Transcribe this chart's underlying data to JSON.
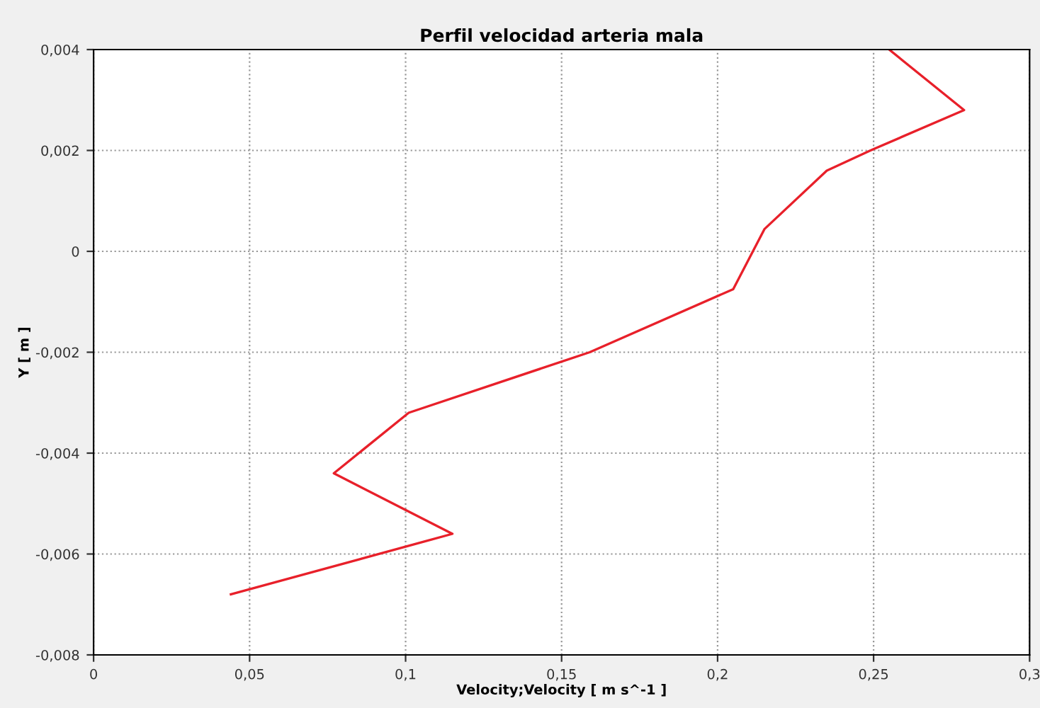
{
  "chart_data": {
    "type": "line",
    "title": "Perfil velocidad arteria mala",
    "xlabel": "Velocity;Velocity [ m s^-1 ]",
    "ylabel": "Y [ m ]",
    "series": [
      {
        "color": "#e8202a",
        "x": [
          0.255,
          0.279,
          0.249,
          0.235,
          0.215,
          0.205,
          0.159,
          0.101,
          0.077,
          0.115,
          0.044
        ],
        "values": [
          0.004,
          0.0028,
          0.002,
          0.0016,
          0.00044,
          -0.00075,
          -0.002,
          -0.0032,
          -0.0044,
          -0.0056,
          -0.0068
        ]
      }
    ],
    "xlim": [
      0,
      0.3
    ],
    "ylim": [
      -0.008,
      0.004
    ],
    "xticks": [
      0,
      {
        "value": 0.05,
        "label": "0,05"
      },
      {
        "value": 0.1,
        "label": "0,1"
      },
      {
        "value": 0.15,
        "label": "0,15"
      },
      {
        "value": 0.2,
        "label": "0,2"
      },
      {
        "value": 0.25,
        "label": "0,25"
      },
      {
        "value": 0.3,
        "label": "0,3"
      }
    ],
    "yticks": [
      {
        "value": -0.008,
        "label": "-0,008"
      },
      {
        "value": -0.006,
        "label": "-0,006"
      },
      {
        "value": -0.004,
        "label": "-0,004"
      },
      {
        "value": -0.002,
        "label": "-0,002"
      },
      0,
      {
        "value": 0.002,
        "label": "0,002"
      },
      {
        "value": 0.004,
        "label": "0,004"
      }
    ],
    "grid": true,
    "line_style": "solid",
    "marker": "none"
  }
}
